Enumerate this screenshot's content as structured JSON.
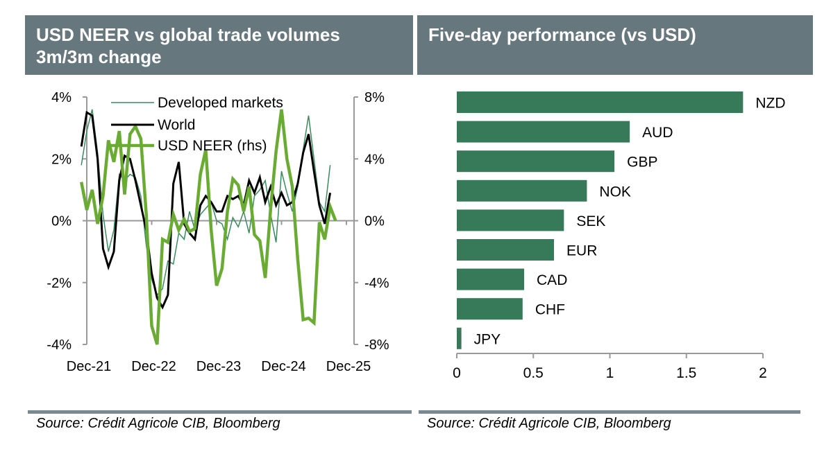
{
  "panels": [
    {
      "title_lines": [
        "USD NEER vs global trade volumes",
        "3m/3m change"
      ],
      "source": "Source: Crédit Agricole CIB, Bloomberg"
    },
    {
      "title_lines": [
        "Five-day performance (vs USD)"
      ],
      "source": "Source: Crédit Agricole CIB, Bloomberg"
    }
  ],
  "colors": {
    "header_bg": "#66777e",
    "developed_markets": "#3a8a5e",
    "world": "#000000",
    "usd_neer": "#6aab34",
    "bars": "#367a5a",
    "axis": "#999999"
  },
  "chart_data": [
    {
      "type": "line",
      "title": "USD NEER vs global trade volumes 3m/3m change",
      "xlabel": "",
      "ylabel": "",
      "x_tick_labels": [
        "Dec-21",
        "Dec-22",
        "Dec-23",
        "Dec-24",
        "Dec-25"
      ],
      "x_start": "Nov-21",
      "x_end": "Dec-25",
      "y_left": {
        "ticks": [
          4,
          2,
          0,
          -2,
          -4
        ],
        "tick_labels": [
          "4%",
          "2%",
          "0%",
          "-2%",
          "-4%"
        ],
        "range": [
          -4,
          4
        ]
      },
      "y_right": {
        "ticks": [
          8,
          4,
          0,
          -4,
          -8
        ],
        "tick_labels": [
          "8%",
          "4%",
          "0%",
          "-4%",
          "-8%"
        ],
        "range": [
          -8,
          8
        ]
      },
      "legend": {
        "position": "top-left",
        "entries": [
          "Developed markets",
          "World",
          "USD NEER (rhs)"
        ]
      },
      "grid": false,
      "series": [
        {
          "name": "Developed markets",
          "axis": "left",
          "start_month_offset": -1,
          "values": [
            1.8,
            2.9,
            3.6,
            2.2,
            0.2,
            -1.0,
            -0.3,
            1.5,
            1.3,
            1.5,
            1.4,
            0.8,
            -0.8,
            -1.9,
            -2.4,
            -2.2,
            -1.3,
            -1.4,
            -0.4,
            -0.6,
            0.3,
            -0.3,
            0.2,
            0.4,
            0.6,
            0.0,
            -0.1,
            -0.6,
            0.1,
            -0.2,
            0.3,
            -0.4,
            0.8,
            1.0,
            1.3,
            0.2,
            -0.7,
            1.6,
            0.9,
            0.3,
            1.1,
            2.3,
            3.4,
            2.0,
            0.6,
            0.3,
            1.8
          ]
        },
        {
          "name": "World",
          "axis": "left",
          "start_month_offset": -1,
          "values": [
            2.4,
            3.5,
            3.4,
            2.0,
            -0.9,
            -1.5,
            -1.0,
            1.3,
            2.1,
            2.0,
            1.3,
            0.5,
            -0.3,
            -1.7,
            -2.5,
            -2.8,
            -2.4,
            1.2,
            1.9,
            -0.1,
            -0.4,
            -0.6,
            0.5,
            0.8,
            0.6,
            0.3,
            0.3,
            0.8,
            0.7,
            0.8,
            0.5,
            1.3,
            0.9,
            1.4,
            0.6,
            1.1,
            0.5,
            0.9,
            0.5,
            0.6,
            1.2,
            2.2,
            2.8,
            1.6,
            0.5,
            -0.1,
            0.9
          ]
        },
        {
          "name": "USD NEER (rhs)",
          "axis": "right",
          "start_month_offset": -1,
          "values": [
            2.5,
            0.7,
            2.0,
            -0.2,
            1.6,
            5.2,
            3.8,
            5.8,
            1.7,
            5.6,
            6.1,
            5.3,
            0.4,
            -6.8,
            -8.0,
            -1.2,
            -1.4,
            0.4,
            -0.6,
            0.1,
            -0.7,
            -0.5,
            3.0,
            4.6,
            -0.6,
            -4.2,
            -3.1,
            0.6,
            2.7,
            2.3,
            0.6,
            2.2,
            -0.9,
            -1.3,
            -3.7,
            0.8,
            4.5,
            7.2,
            4.0,
            2.2,
            -2.5,
            -6.4,
            -6.3,
            -6.6,
            -0.1,
            -1.2,
            0.9,
            0.0
          ]
        }
      ]
    },
    {
      "type": "bar",
      "orientation": "horizontal",
      "title": "Five-day performance (vs USD)",
      "categories": [
        "NZD",
        "AUD",
        "GBP",
        "NOK",
        "SEK",
        "EUR",
        "CAD",
        "CHF",
        "JPY"
      ],
      "values": [
        1.87,
        1.13,
        1.03,
        0.85,
        0.7,
        0.635,
        0.44,
        0.43,
        0.03
      ],
      "xlabel": "",
      "ylabel": "",
      "x_ticks": [
        0,
        0.5,
        1,
        1.5,
        2
      ],
      "x_tick_labels": [
        "0",
        "0.5",
        "1",
        "1.5",
        "2"
      ],
      "xlim": [
        0,
        2
      ],
      "grid": false,
      "legend": null
    }
  ]
}
